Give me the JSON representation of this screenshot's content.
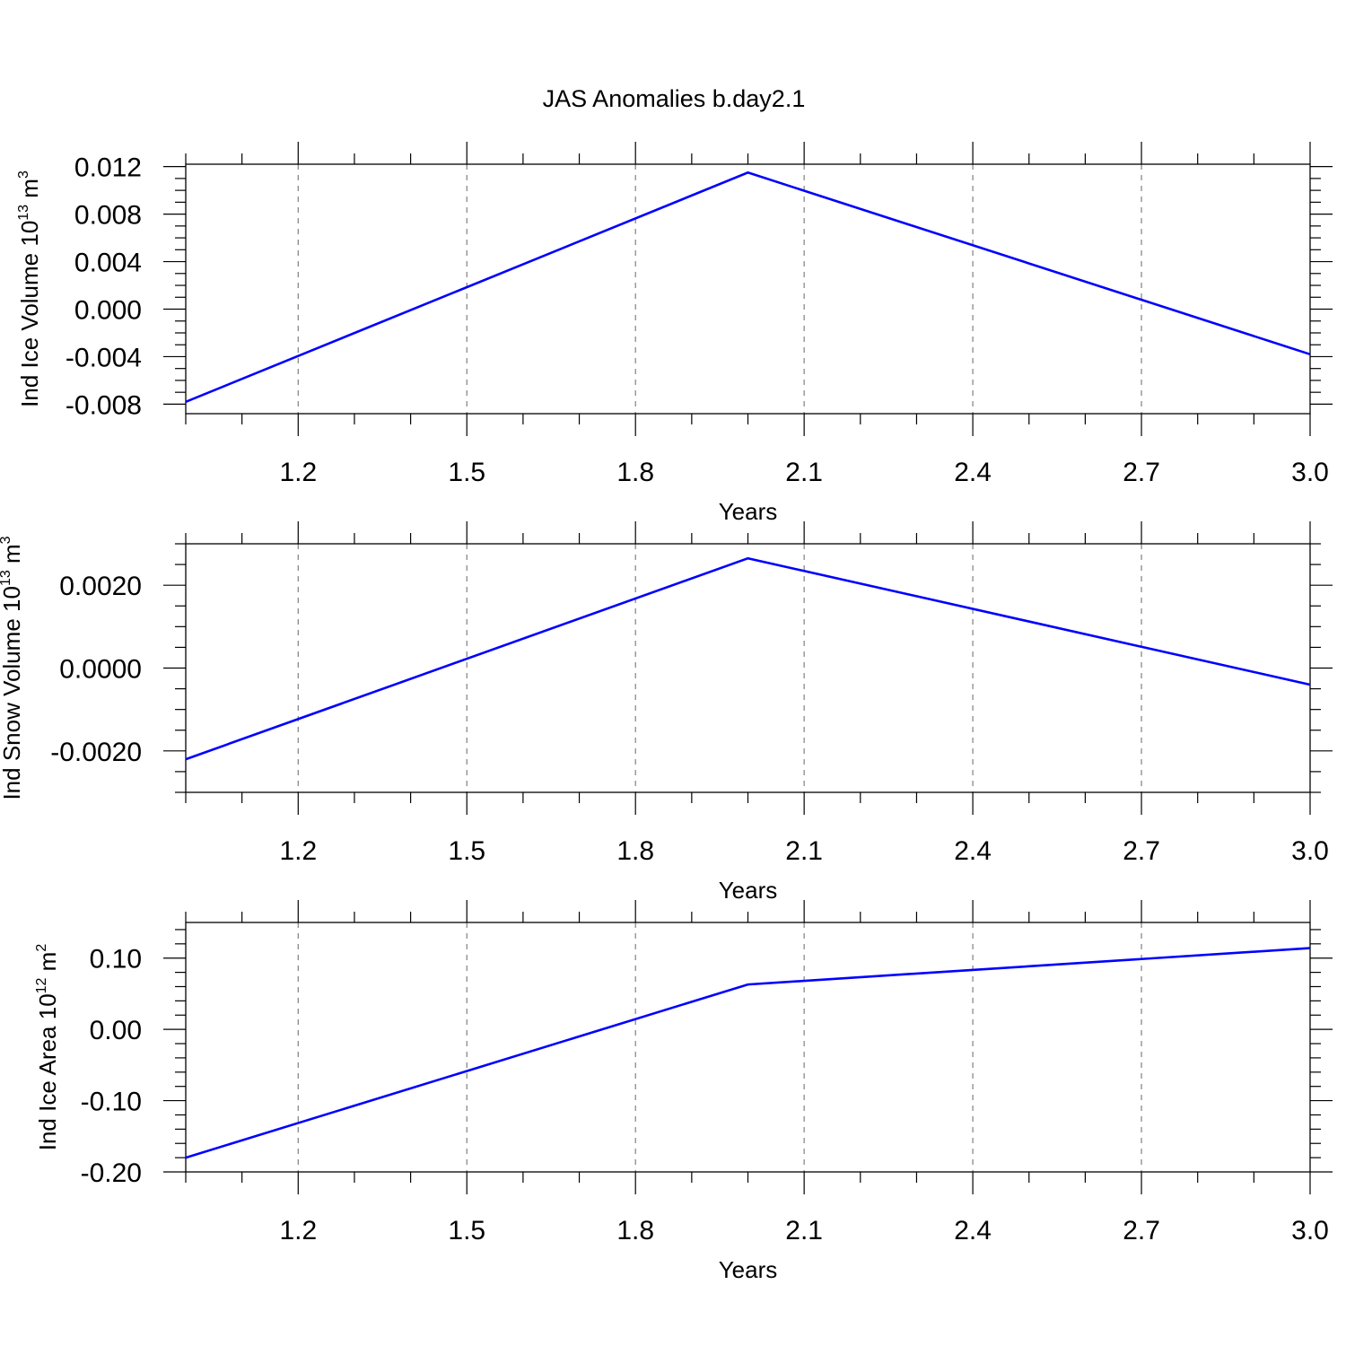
{
  "title": "JAS Anomalies b.day2.1",
  "colors": {
    "line": "#0000ff",
    "frame": "#000000",
    "grid": "#808080"
  },
  "chart_data": [
    {
      "type": "line",
      "xlabel": "Years",
      "ylabel": {
        "text": "Ind Ice Volume 10",
        "sup": "13",
        "unit": " m",
        "unit_sup": "3"
      },
      "x": [
        1,
        2,
        3
      ],
      "values": [
        -0.0078,
        0.0115,
        -0.0038
      ],
      "xlim": [
        1.0,
        3.0
      ],
      "ylim": [
        -0.0088,
        0.0122
      ],
      "xticks": [
        1.2,
        1.5,
        1.8,
        2.1,
        2.4,
        2.7,
        3.0
      ],
      "xtick_labels": [
        "1.2",
        "1.5",
        "1.8",
        "2.1",
        "2.4",
        "2.7",
        "3.0"
      ],
      "yticks": [
        -0.008,
        -0.004,
        0.0,
        0.004,
        0.008,
        0.012
      ],
      "ytick_labels": [
        "-0.008",
        "-0.004",
        "0.000",
        "0.004",
        "0.008",
        "0.012"
      ],
      "yminor_step": 0.001,
      "grid": "vertical-dashed"
    },
    {
      "type": "line",
      "xlabel": "Years",
      "ylabel": {
        "text": "Ind Snow Volume 10",
        "sup": "13",
        "unit": " m",
        "unit_sup": "3"
      },
      "x": [
        1,
        2,
        3
      ],
      "values": [
        -0.0022,
        0.00265,
        -0.0004
      ],
      "xlim": [
        1.0,
        3.0
      ],
      "ylim": [
        -0.003,
        0.003
      ],
      "xticks": [
        1.2,
        1.5,
        1.8,
        2.1,
        2.4,
        2.7,
        3.0
      ],
      "xtick_labels": [
        "1.2",
        "1.5",
        "1.8",
        "2.1",
        "2.4",
        "2.7",
        "3.0"
      ],
      "yticks": [
        -0.002,
        0.0,
        0.002
      ],
      "ytick_labels": [
        "-0.0020",
        "0.0000",
        "0.0020"
      ],
      "yminor_step": 0.0005,
      "grid": "vertical-dashed"
    },
    {
      "type": "line",
      "xlabel": "Years",
      "ylabel": {
        "text": "Ind Ice Area 10",
        "sup": "12",
        "unit": " m",
        "unit_sup": "2"
      },
      "x": [
        1,
        2,
        3
      ],
      "values": [
        -0.18,
        0.063,
        0.114
      ],
      "xlim": [
        1.0,
        3.0
      ],
      "ylim": [
        -0.2,
        0.15
      ],
      "xticks": [
        1.2,
        1.5,
        1.8,
        2.1,
        2.4,
        2.7,
        3.0
      ],
      "xtick_labels": [
        "1.2",
        "1.5",
        "1.8",
        "2.1",
        "2.4",
        "2.7",
        "3.0"
      ],
      "yticks": [
        -0.2,
        -0.1,
        0.0,
        0.1
      ],
      "ytick_labels": [
        "-0.20",
        "-0.10",
        "0.00",
        "0.10"
      ],
      "yminor_step": 0.02,
      "grid": "vertical-dashed"
    }
  ]
}
